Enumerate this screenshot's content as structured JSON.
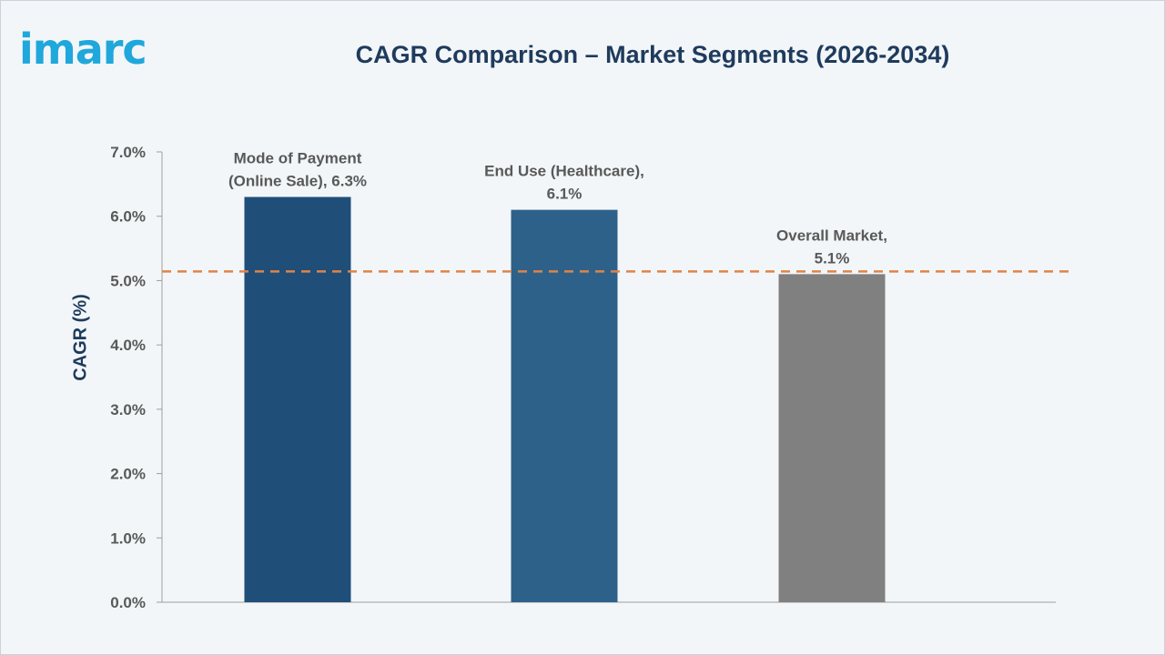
{
  "logo": {
    "text": "imarc"
  },
  "colors": {
    "bar_1": "#1f4e79",
    "bar_2": "#2e6189",
    "bar_3": "#808080",
    "reference_line": "#e0834a",
    "axis": "#9e9e9e",
    "text": "#595959",
    "title": "#1f3b5c"
  },
  "chart_data": {
    "type": "bar",
    "title": "CAGR Comparison – Market Segments (2026-2034)",
    "xlabel": "",
    "ylabel": "CAGR (%)",
    "ylim": [
      0,
      7
    ],
    "yticks": [
      "0.0%",
      "1.0%",
      "2.0%",
      "3.0%",
      "4.0%",
      "5.0%",
      "6.0%",
      "7.0%"
    ],
    "grid": false,
    "categories": [
      "Mode of Payment (Online Sale)",
      "End Use (Healthcare)",
      "Overall Market"
    ],
    "values": [
      6.3,
      6.1,
      5.1
    ],
    "data_labels": [
      [
        "Mode of Payment",
        "(Online Sale), 6.3%"
      ],
      [
        "End Use (Healthcare),",
        "6.1%"
      ],
      [
        "Overall Market,",
        "5.1%"
      ]
    ],
    "reference_line": {
      "value": 5.1,
      "style": "dashed"
    }
  }
}
